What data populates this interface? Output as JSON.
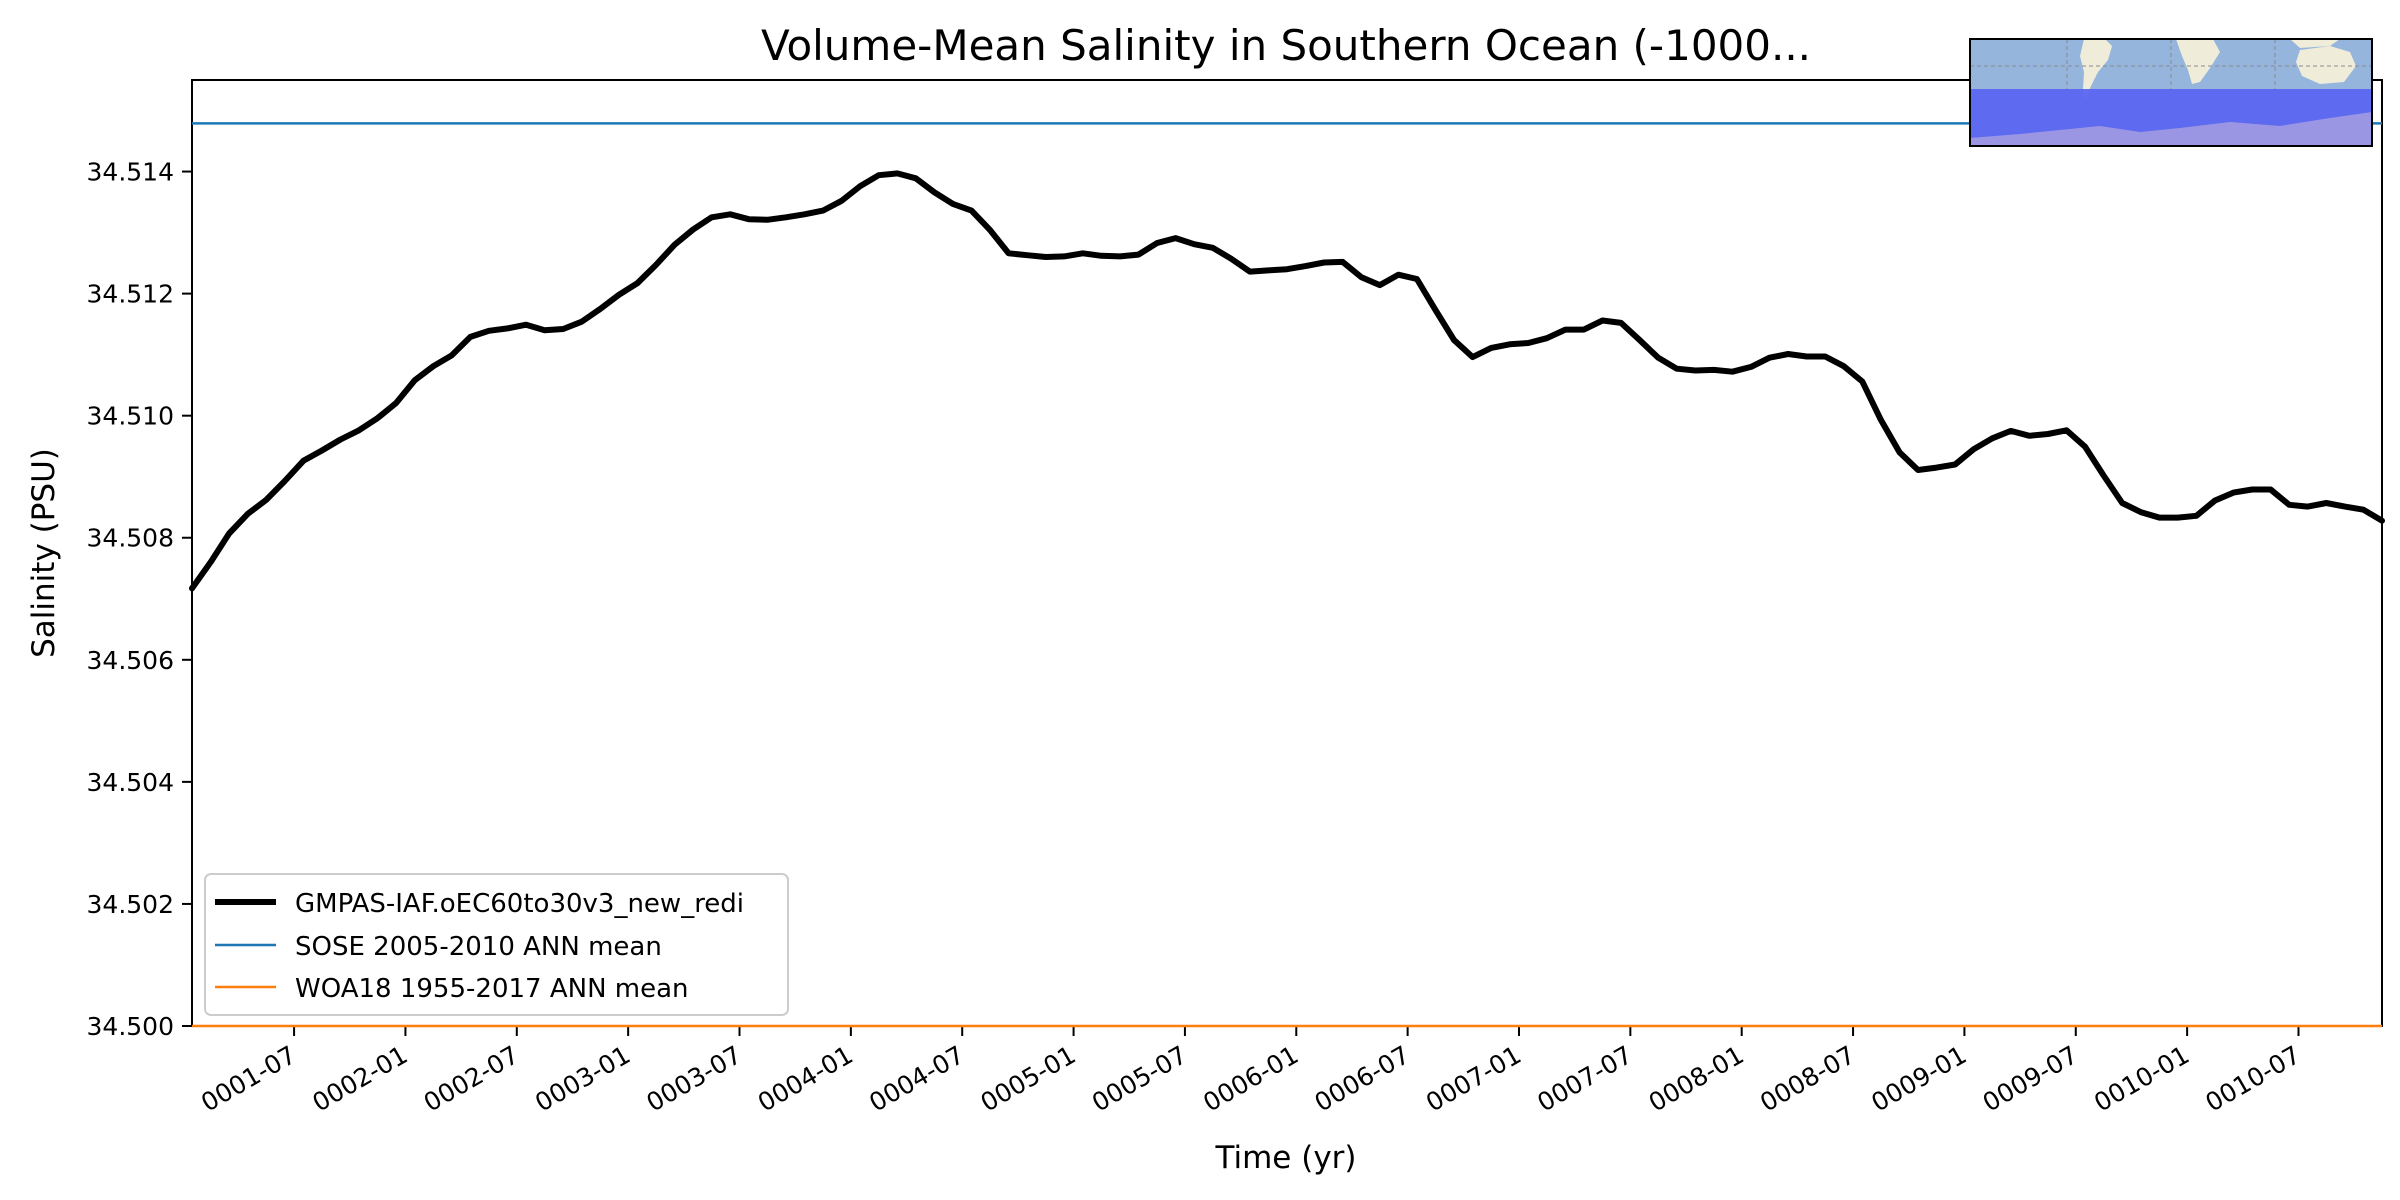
{
  "chart_data": {
    "type": "line",
    "title": "Volume-Mean Salinity in Southern Ocean (-1000...",
    "xlabel": "Time (yr)",
    "ylabel": "Salinity (PSU)",
    "ylim": [
      34.5,
      34.5155
    ],
    "xlim_months": [
      0.0,
      118.0
    ],
    "x_tick_labels": [
      "0001-07",
      "0002-01",
      "0002-07",
      "0003-01",
      "0003-07",
      "0004-01",
      "0004-07",
      "0005-01",
      "0005-07",
      "0006-01",
      "0006-07",
      "0007-01",
      "0007-07",
      "0008-01",
      "0008-07",
      "0009-01",
      "0009-07",
      "0010-01",
      "0010-07"
    ],
    "x_tick_months": [
      5.5,
      11.5,
      17.5,
      23.5,
      29.5,
      35.5,
      41.5,
      47.5,
      53.5,
      59.5,
      65.5,
      71.5,
      77.5,
      83.5,
      89.5,
      95.5,
      101.5,
      107.5,
      113.5
    ],
    "y_tick_labels": [
      "34.500",
      "34.502",
      "34.504",
      "34.506",
      "34.508",
      "34.510",
      "34.512",
      "34.514"
    ],
    "y_tick_values": [
      34.5,
      34.502,
      34.504,
      34.506,
      34.508,
      34.51,
      34.512,
      34.514
    ],
    "series": [
      {
        "name": "GMPAS-IAF.oEC60to30v3_new_redi",
        "color": "#000000",
        "x": [
          0,
          1,
          2,
          3,
          4,
          5,
          6,
          7,
          8,
          9,
          10,
          11,
          12,
          13,
          14,
          15,
          16,
          17,
          18,
          19,
          20,
          21,
          22,
          23,
          24,
          25,
          26,
          27,
          28,
          29,
          30,
          31,
          32,
          33,
          34,
          35,
          36,
          37,
          38,
          39,
          40,
          41,
          42,
          43,
          44,
          45,
          46,
          47,
          48,
          49,
          50,
          51,
          52,
          53,
          54,
          55,
          56,
          57,
          58,
          59,
          60,
          61,
          62,
          63,
          64,
          65,
          66,
          67,
          68,
          69,
          70,
          71,
          72,
          73,
          74,
          75,
          76,
          77,
          78,
          79,
          80,
          81,
          82,
          83,
          84,
          85,
          86,
          87,
          88,
          89,
          90,
          91,
          92,
          93,
          94,
          95,
          96,
          97,
          98,
          99,
          100,
          101,
          102,
          103,
          104,
          105,
          106,
          107,
          108,
          109,
          110,
          111,
          112,
          113,
          114,
          115,
          116,
          117,
          118
        ],
        "values": [
          34.50717,
          34.5076,
          34.50807,
          34.50839,
          34.50862,
          34.50893,
          34.50926,
          34.50943,
          34.50961,
          34.50976,
          34.50996,
          34.51021,
          34.51058,
          34.51081,
          34.51099,
          34.51129,
          34.51139,
          34.51143,
          34.51149,
          34.5114,
          34.51142,
          34.51154,
          34.51175,
          34.51198,
          34.51217,
          34.51247,
          34.5128,
          34.51305,
          34.51325,
          34.5133,
          34.51322,
          34.51321,
          34.51325,
          34.5133,
          34.51336,
          34.51352,
          34.51376,
          34.51394,
          34.51397,
          34.51389,
          34.51366,
          34.51347,
          34.51336,
          34.51304,
          34.51266,
          34.51263,
          34.5126,
          34.51261,
          34.51266,
          34.51262,
          34.51261,
          34.51264,
          34.51283,
          34.51291,
          34.51281,
          34.51275,
          34.51257,
          34.51236,
          34.51238,
          34.5124,
          34.51245,
          34.51251,
          34.51252,
          34.51227,
          34.51214,
          34.51231,
          34.51224,
          34.51173,
          34.51124,
          34.51096,
          34.51111,
          34.51117,
          34.51119,
          34.51127,
          34.51141,
          34.51141,
          34.51156,
          34.51152,
          34.51124,
          34.51095,
          34.51077,
          34.51074,
          34.51075,
          34.51072,
          34.5108,
          34.51095,
          34.51101,
          34.51097,
          34.51097,
          34.51081,
          34.51056,
          34.50993,
          34.5094,
          34.50911,
          34.50915,
          34.5092,
          34.50945,
          34.50963,
          34.50975,
          34.50967,
          34.5097,
          34.50976,
          34.50949,
          34.50902,
          34.50857,
          34.50842,
          34.50833,
          34.50833,
          34.50836,
          34.50861,
          34.50874,
          34.50879,
          34.50879,
          34.50854,
          34.50851,
          34.50857,
          34.50851,
          34.50846,
          34.50828
        ]
      },
      {
        "name": "SOSE 2005-2010 ANN mean",
        "color": "#1f77b4",
        "values": [
          34.51479
        ]
      },
      {
        "name": "WOA18 1955-2017 ANN mean",
        "color": "#ff7f0e",
        "values": [
          34.5
        ]
      }
    ],
    "legend_position": "lower-left",
    "grid": false,
    "inset_map": {
      "description_icon": "southern-ocean-region-map-icon"
    }
  }
}
